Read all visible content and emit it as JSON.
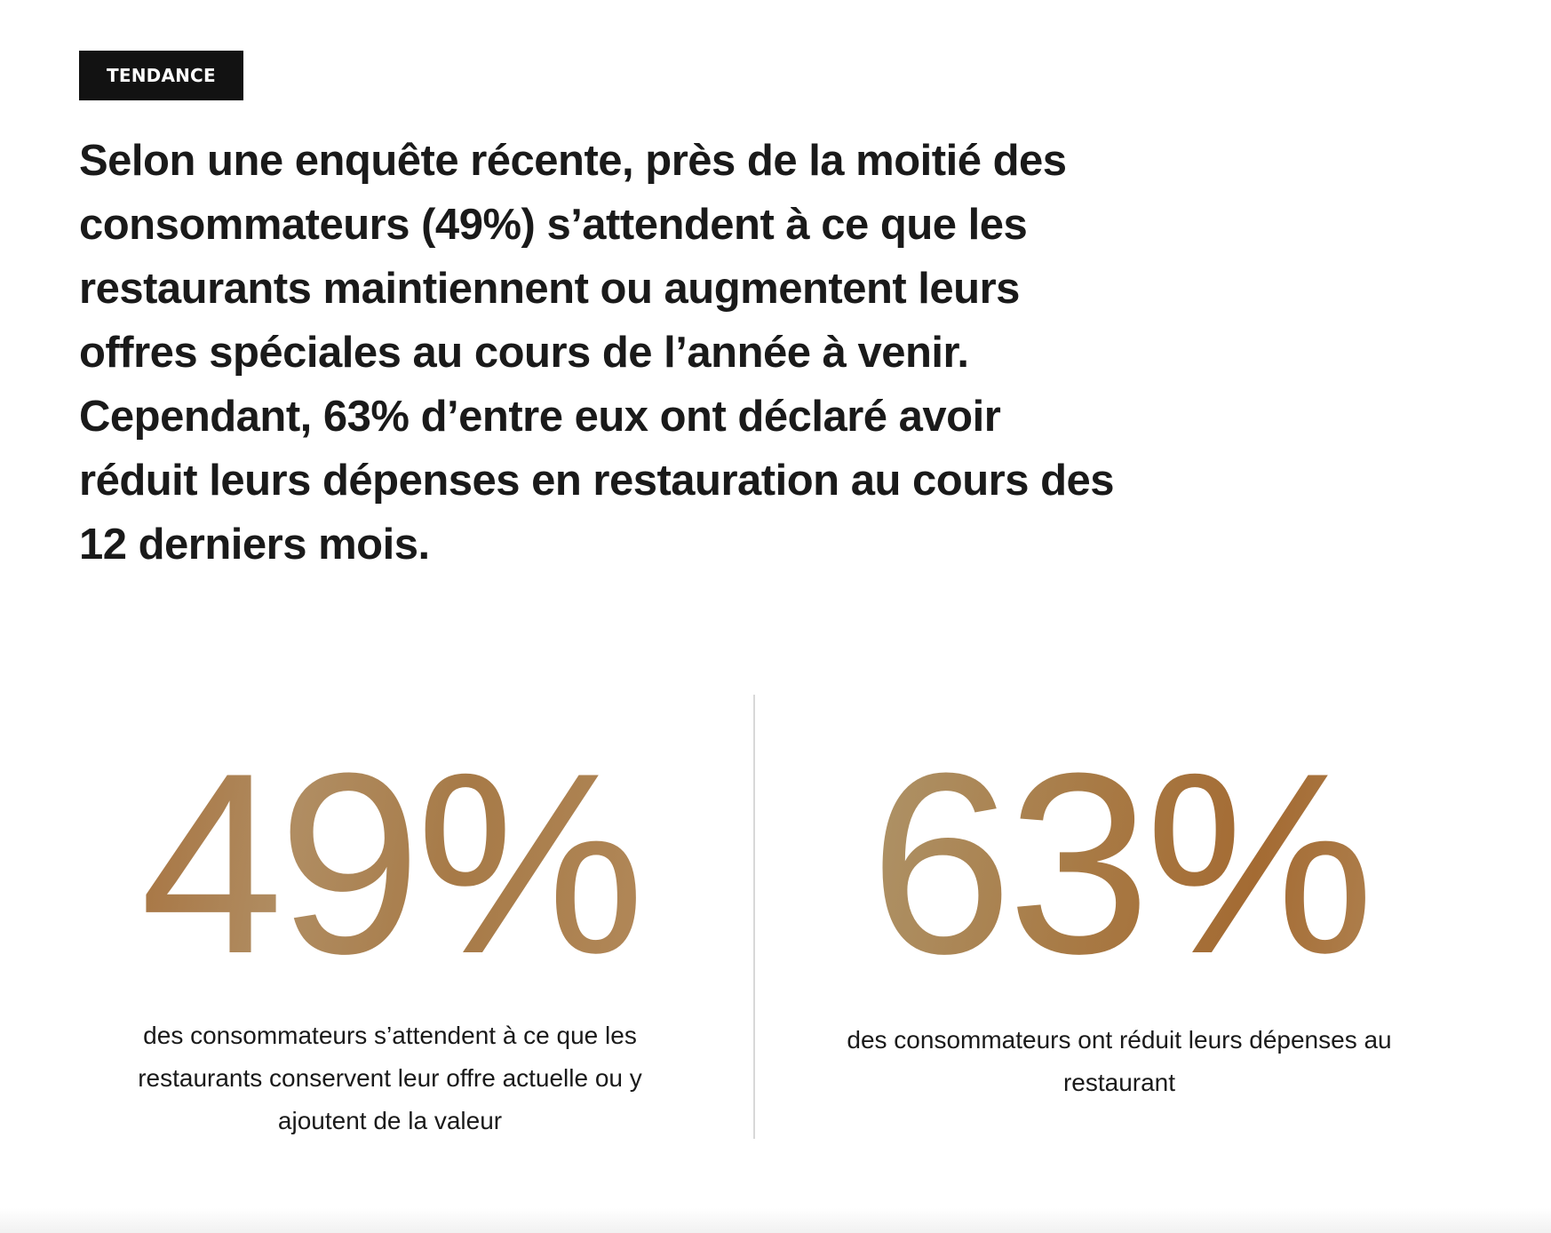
{
  "tag": {
    "label": "TENDANCE"
  },
  "headline": "Selon une enquête récente, près de la moitié des consommateurs (49%) s’attendent à ce que les restaurants maintiennent ou augmentent leurs offres spéciales au cours de l’année à venir. Cependant, 63% d’entre eux ont déclaré avoir réduit leurs dépenses en restauration au cours des 12 derniers mois.",
  "stats": [
    {
      "value": "49%",
      "caption": "des consommateurs s’attendent à ce que les restaurants conservent leur offre actuelle ou y ajoutent de la valeur"
    },
    {
      "value": "63%",
      "caption": "des consommateurs ont réduit leurs dépenses au restaurant"
    }
  ],
  "colors": {
    "tag_background": "#121212",
    "accent_gold": "#a87a45",
    "divider": "#d8d8d8"
  }
}
